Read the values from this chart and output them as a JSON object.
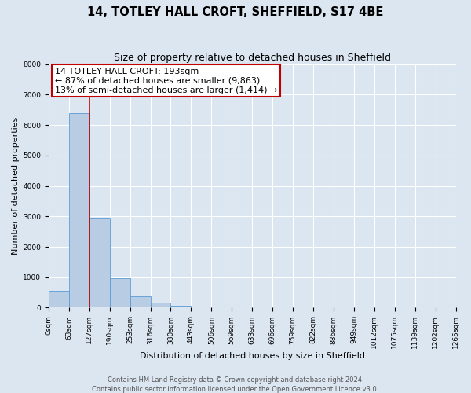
{
  "title": "14, TOTLEY HALL CROFT, SHEFFIELD, S17 4BE",
  "subtitle": "Size of property relative to detached houses in Sheffield",
  "xlabel": "Distribution of detached houses by size in Sheffield",
  "ylabel": "Number of detached properties",
  "bar_values": [
    550,
    6400,
    2950,
    975,
    375,
    175,
    75,
    0,
    0,
    0,
    0,
    0,
    0,
    0,
    0,
    0,
    0,
    0,
    0,
    0
  ],
  "bin_labels": [
    "0sqm",
    "63sqm",
    "127sqm",
    "190sqm",
    "253sqm",
    "316sqm",
    "380sqm",
    "443sqm",
    "506sqm",
    "569sqm",
    "633sqm",
    "696sqm",
    "759sqm",
    "822sqm",
    "886sqm",
    "949sqm",
    "1012sqm",
    "1075sqm",
    "1139sqm",
    "1202sqm",
    "1265sqm"
  ],
  "bar_color": "#b8cce4",
  "bar_edge_color": "#5b9bd5",
  "ylim": [
    0,
    8000
  ],
  "yticks": [
    0,
    1000,
    2000,
    3000,
    4000,
    5000,
    6000,
    7000,
    8000
  ],
  "vline_x": 2.0,
  "vline_color": "#c00000",
  "annotation_title": "14 TOTLEY HALL CROFT: 193sqm",
  "annotation_line1": "← 87% of detached houses are smaller (9,863)",
  "annotation_line2": "13% of semi-detached houses are larger (1,414) →",
  "annotation_box_color": "#c00000",
  "footer_line1": "Contains HM Land Registry data © Crown copyright and database right 2024.",
  "footer_line2": "Contains public sector information licensed under the Open Government Licence v3.0.",
  "background_color": "#dce6f1",
  "plot_bg_color": "#dce6f1",
  "grid_color": "#ffffff",
  "title_fontsize": 10.5,
  "subtitle_fontsize": 9,
  "axis_label_fontsize": 8,
  "tick_fontsize": 6.5,
  "footer_fontsize": 6,
  "annotation_fontsize": 8
}
